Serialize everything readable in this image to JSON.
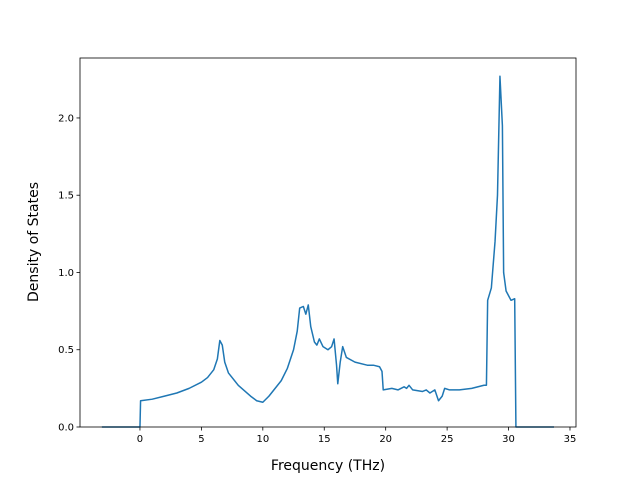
{
  "chart_data": {
    "type": "line",
    "x_label": "Frequency (THz)",
    "y_label": "Density of States",
    "xlim": [
      -4.88,
      35.49
    ],
    "ylim": [
      0,
      2.388
    ],
    "xticks": [
      0,
      5,
      10,
      15,
      20,
      25,
      30,
      35
    ],
    "yticks": [
      {
        "value": 0,
        "label": "0.0"
      },
      {
        "value": 0.5,
        "label": "0.5"
      },
      {
        "value": 1.0,
        "label": "1.0"
      },
      {
        "value": 1.5,
        "label": "1.5"
      },
      {
        "value": 2.0,
        "label": "2.0"
      }
    ],
    "grid": false,
    "series": [
      {
        "color": "#1f77b4",
        "x": [
          -3.1,
          0,
          0.05,
          1,
          2,
          3,
          4,
          5,
          5.5,
          6,
          6.3,
          6.5,
          6.7,
          6.9,
          7.2,
          8,
          9,
          9.5,
          10,
          10.5,
          11,
          11.5,
          12,
          12.5,
          12.8,
          13,
          13.3,
          13.5,
          13.7,
          13.9,
          14.2,
          14.4,
          14.6,
          14.9,
          15.3,
          15.6,
          15.8,
          16,
          16.1,
          16.3,
          16.5,
          16.8,
          17.5,
          18.5,
          19,
          19.5,
          19.7,
          19.8,
          20.5,
          21,
          21.5,
          21.7,
          21.9,
          22.2,
          23,
          23.3,
          23.6,
          24,
          24.3,
          24.6,
          24.8,
          25.2,
          26,
          27,
          28,
          28.2,
          28.3,
          28.6,
          28.9,
          29.1,
          29.3,
          29.5,
          29.6,
          29.8,
          30.2,
          30.5,
          30.6,
          33.7
        ],
        "values": [
          0,
          0,
          0.17,
          0.18,
          0.2,
          0.22,
          0.25,
          0.29,
          0.32,
          0.37,
          0.44,
          0.56,
          0.53,
          0.42,
          0.35,
          0.27,
          0.2,
          0.17,
          0.16,
          0.2,
          0.25,
          0.3,
          0.38,
          0.5,
          0.62,
          0.77,
          0.78,
          0.73,
          0.79,
          0.65,
          0.55,
          0.53,
          0.57,
          0.52,
          0.5,
          0.52,
          0.57,
          0.4,
          0.28,
          0.42,
          0.52,
          0.45,
          0.42,
          0.4,
          0.4,
          0.39,
          0.36,
          0.24,
          0.25,
          0.24,
          0.26,
          0.25,
          0.27,
          0.24,
          0.23,
          0.24,
          0.22,
          0.24,
          0.17,
          0.2,
          0.25,
          0.24,
          0.24,
          0.25,
          0.27,
          0.27,
          0.82,
          0.9,
          1.2,
          1.5,
          2.27,
          1.95,
          1.0,
          0.88,
          0.82,
          0.83,
          0,
          0
        ]
      }
    ]
  }
}
